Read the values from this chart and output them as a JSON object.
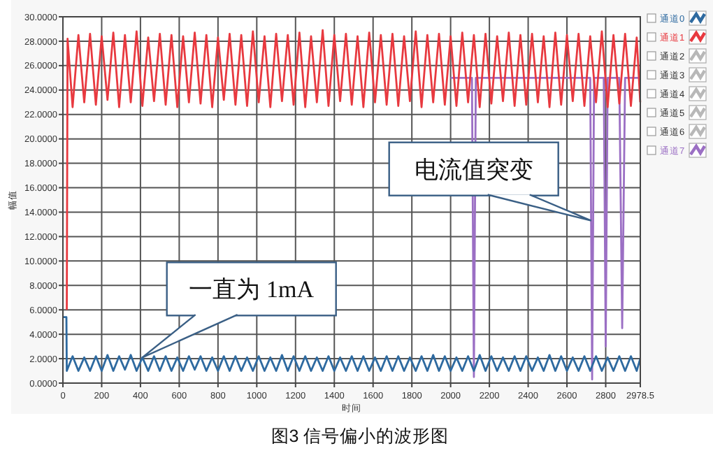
{
  "chart_data": {
    "type": "line",
    "title": "图3  信号偏小的波形图",
    "xlabel": "时间",
    "ylabel": "幅值",
    "xlim": [
      0,
      2978.5
    ],
    "xticks": [
      0,
      200,
      400,
      600,
      800,
      1000,
      1200,
      1400,
      1600,
      1800,
      2000,
      2200,
      2400,
      2600,
      2800,
      2978.5
    ],
    "ylim": [
      0,
      30
    ],
    "yticks": [
      {
        "value": 0,
        "label": "0.0000"
      },
      {
        "value": 2,
        "label": "2.0000"
      },
      {
        "value": 4,
        "label": "4.0000"
      },
      {
        "value": 6,
        "label": "6.0000"
      },
      {
        "value": 8,
        "label": "8.0000"
      },
      {
        "value": 10,
        "label": "10.0000"
      },
      {
        "value": 12,
        "label": "12.0000"
      },
      {
        "value": 14,
        "label": "14.0000"
      },
      {
        "value": 16,
        "label": "16.0000"
      },
      {
        "value": 18,
        "label": "18.0000"
      },
      {
        "value": 20,
        "label": "20.0000"
      },
      {
        "value": 22,
        "label": "22.0000"
      },
      {
        "value": 24,
        "label": "24.0000"
      },
      {
        "value": 26,
        "label": "26.0000"
      },
      {
        "value": 28,
        "label": "28.0000"
      },
      {
        "value": 30,
        "label": "30.0000"
      }
    ],
    "grid": true,
    "legend": "right",
    "marker": "none",
    "line_style": "solid",
    "series": [
      {
        "name": "通道0",
        "color": "#2e6aa0",
        "x": [
          0,
          18,
          20,
          50,
          80,
          110,
          140,
          170,
          200,
          230,
          260,
          290,
          320,
          350,
          380,
          410,
          440,
          470,
          500,
          530,
          560,
          590,
          620,
          650,
          680,
          710,
          740,
          770,
          800,
          830,
          860,
          890,
          920,
          950,
          980,
          1010,
          1040,
          1070,
          1100,
          1130,
          1160,
          1190,
          1220,
          1250,
          1280,
          1310,
          1340,
          1370,
          1400,
          1430,
          1460,
          1490,
          1520,
          1550,
          1580,
          1610,
          1640,
          1670,
          1700,
          1730,
          1760,
          1790,
          1820,
          1850,
          1880,
          1910,
          1940,
          1970,
          2000,
          2030,
          2060,
          2090,
          2120,
          2150,
          2180,
          2210,
          2240,
          2270,
          2300,
          2330,
          2360,
          2390,
          2420,
          2450,
          2480,
          2510,
          2540,
          2570,
          2600,
          2630,
          2660,
          2690,
          2720,
          2750,
          2780,
          2810,
          2840,
          2870,
          2900,
          2930,
          2960,
          2978
        ],
        "values": [
          5.4,
          5.4,
          1.0,
          2.2,
          1.0,
          2.1,
          1.0,
          2.2,
          1.0,
          2.3,
          1.0,
          2.2,
          1.1,
          2.3,
          1.0,
          2.1,
          1.0,
          2.2,
          1.0,
          2.2,
          1.0,
          2.1,
          1.0,
          2.2,
          1.1,
          2.2,
          1.0,
          2.1,
          1.0,
          2.2,
          1.0,
          2.2,
          1.0,
          2.1,
          1.0,
          2.2,
          1.0,
          2.1,
          1.0,
          2.3,
          1.0,
          2.2,
          1.0,
          2.2,
          1.0,
          2.1,
          1.0,
          2.2,
          1.0,
          2.1,
          1.0,
          2.2,
          1.0,
          2.2,
          1.0,
          2.1,
          1.0,
          2.2,
          1.0,
          2.2,
          1.0,
          2.1,
          1.0,
          2.2,
          1.0,
          2.3,
          1.0,
          2.2,
          1.0,
          2.1,
          1.0,
          2.2,
          1.0,
          2.3,
          1.0,
          2.2,
          1.0,
          2.1,
          1.0,
          2.2,
          1.0,
          2.2,
          1.0,
          2.1,
          1.0,
          2.3,
          1.0,
          2.2,
          1.0,
          2.1,
          1.0,
          2.2,
          1.0,
          2.2,
          1.0,
          2.1,
          1.0,
          2.2,
          1.0,
          2.2,
          1.0,
          2.0
        ]
      },
      {
        "name": "通道1",
        "color": "#e8393f",
        "x": [
          20,
          24,
          50,
          80,
          110,
          140,
          170,
          200,
          230,
          260,
          290,
          320,
          350,
          380,
          410,
          440,
          470,
          500,
          530,
          560,
          590,
          620,
          650,
          680,
          710,
          740,
          770,
          800,
          830,
          860,
          890,
          920,
          950,
          980,
          1010,
          1040,
          1070,
          1100,
          1130,
          1160,
          1190,
          1220,
          1250,
          1280,
          1310,
          1340,
          1370,
          1400,
          1430,
          1460,
          1490,
          1520,
          1550,
          1580,
          1610,
          1640,
          1670,
          1700,
          1730,
          1760,
          1790,
          1820,
          1850,
          1880,
          1910,
          1940,
          1970,
          2000,
          2030,
          2060,
          2090,
          2120,
          2150,
          2180,
          2210,
          2240,
          2270,
          2300,
          2330,
          2360,
          2390,
          2420,
          2450,
          2480,
          2510,
          2540,
          2570,
          2600,
          2630,
          2660,
          2690,
          2720,
          2750,
          2780,
          2810,
          2840,
          2870,
          2900,
          2930,
          2960,
          2978
        ],
        "values": [
          6.0,
          28.2,
          22.6,
          28.5,
          23.0,
          28.6,
          22.8,
          28.4,
          23.2,
          28.7,
          22.6,
          28.5,
          23.0,
          28.8,
          22.7,
          28.3,
          23.1,
          28.6,
          22.8,
          28.5,
          22.6,
          28.4,
          23.0,
          28.7,
          22.9,
          28.5,
          22.6,
          28.3,
          23.2,
          28.6,
          22.8,
          28.5,
          22.7,
          28.8,
          23.0,
          28.4,
          22.6,
          28.6,
          23.1,
          28.5,
          22.8,
          28.7,
          22.6,
          28.4,
          23.0,
          28.9,
          22.7,
          28.5,
          23.1,
          28.6,
          22.8,
          28.4,
          22.6,
          28.7,
          23.0,
          28.5,
          22.8,
          28.6,
          22.7,
          28.4,
          23.1,
          28.8,
          22.6,
          28.5,
          23.0,
          28.6,
          22.8,
          28.4,
          22.7,
          28.7,
          23.0,
          28.5,
          22.6,
          28.6,
          22.9,
          28.4,
          23.1,
          28.7,
          22.7,
          28.5,
          22.8,
          28.6,
          23.0,
          28.4,
          22.6,
          28.7,
          22.8,
          28.5,
          23.1,
          28.6,
          22.7,
          28.4,
          23.0,
          28.8,
          22.6,
          28.5,
          22.9,
          28.6,
          22.7,
          28.3,
          23.0
        ]
      },
      {
        "name": "通道7",
        "color": "#9b6fc4",
        "x": [
          2000,
          2110,
          2120,
          2130,
          2700,
          2720,
          2730,
          2740,
          2790,
          2800,
          2810,
          2870,
          2885,
          2900,
          2978
        ],
        "values": [
          25,
          25,
          0.5,
          25,
          25,
          25,
          0.3,
          25,
          25,
          3,
          25,
          25,
          4.5,
          25,
          25
        ]
      }
    ],
    "annotations": [
      "通道2",
      "通道3",
      "通道4",
      "通道5",
      "通道6",
      {
        "text": "一直为 1mA",
        "x": 410,
        "y": 2.1
      },
      {
        "text": "电流值突变",
        "x": 2725,
        "y": 13.3
      }
    ]
  }
}
